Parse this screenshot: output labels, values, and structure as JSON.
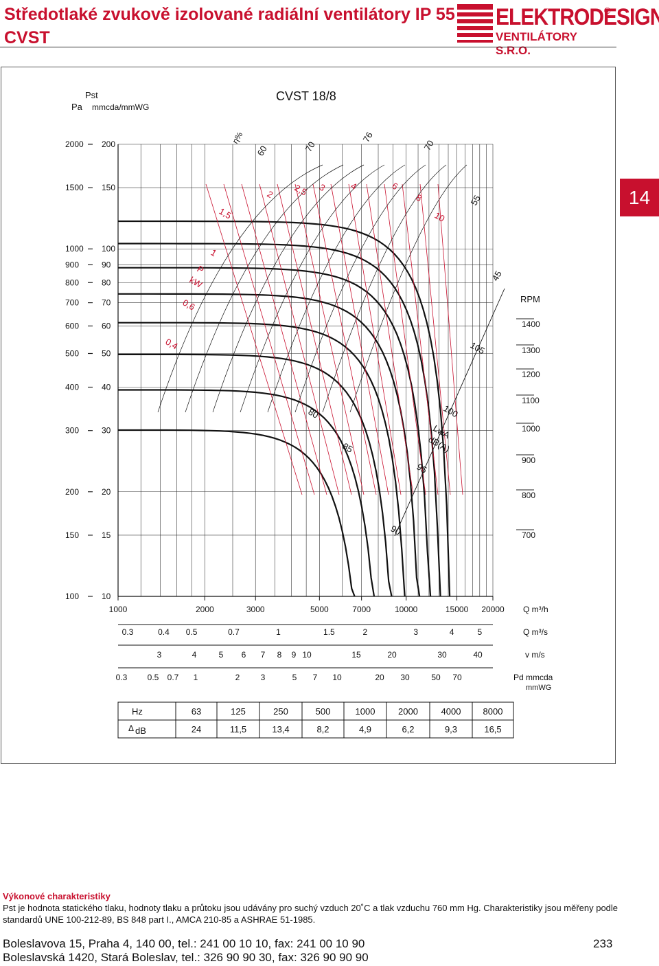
{
  "header": {
    "title_line1": "Středotlaké zvukově izolované radiální ventilátory IP 55",
    "title_line2": "CVST"
  },
  "logo": {
    "name": "ELEKTRODESIGN",
    "sub": "VENTILÁTORY S.R.O.",
    "reg": "®"
  },
  "side_tab": "14",
  "chart_data": {
    "type": "line",
    "title": "CVST 18/8",
    "y_axis_header": {
      "pst": "Pst",
      "pa": "Pa",
      "units": "mmcda/mmWG"
    },
    "x_scale": "log",
    "y_scale": "log",
    "xlabel": "Q m³/h",
    "ylabel": "Pa",
    "xlim": [
      1000,
      20000
    ],
    "ylim": [
      100,
      2000
    ],
    "pa_ticks": [
      "2000",
      "1500",
      "1000",
      "900",
      "800",
      "700",
      "600",
      "500",
      "400",
      "300",
      "200",
      "150",
      "100"
    ],
    "mm_ticks": [
      "200",
      "150",
      "100",
      "90",
      "80",
      "70",
      "60",
      "50",
      "40",
      "30",
      "20",
      "15",
      "10"
    ],
    "tick_values": [
      2000,
      1500,
      1000,
      900,
      800,
      700,
      600,
      500,
      400,
      300,
      200,
      150,
      100
    ],
    "rpm_label": "RPM",
    "rpm": [
      {
        "label": "1400",
        "value": 1400
      },
      {
        "label": "1300",
        "value": 1300
      },
      {
        "label": "1200",
        "value": 1200
      },
      {
        "label": "1100",
        "value": 1100
      },
      {
        "label": "1000",
        "value": 1000
      },
      {
        "label": "900",
        "value": 900
      },
      {
        "label": "800",
        "value": 800
      },
      {
        "label": "700",
        "value": 700
      }
    ],
    "rpm_y": [
      472,
      510,
      545,
      583,
      624,
      670,
      721,
      779
    ],
    "efficiency_symbol": "η%",
    "efficiency_labels": [
      "60",
      "70",
      "76",
      "70",
      "55",
      "45"
    ],
    "power_symbol": "P",
    "power_unit": "kW",
    "power_labels": [
      "0,4",
      "0,6",
      "1",
      "1,5",
      "2",
      "2,5",
      "3",
      "4",
      "6",
      "8",
      "10"
    ],
    "noise_symbol": "LwA",
    "noise_unit": "dB(A)",
    "noise_labels": [
      "80",
      "85",
      "90",
      "95",
      "100",
      "105"
    ],
    "x_axis_qh": {
      "labels": [
        "1000",
        "2000",
        "3000",
        "5000",
        "7000",
        "10000",
        "15000",
        "20000"
      ],
      "values": [
        1000,
        2000,
        3000,
        5000,
        7000,
        10000,
        15000,
        20000
      ],
      "unit_label": "Q m³/h"
    },
    "x_axis_qs": {
      "labels": [
        "0.3",
        "0.4",
        "0.5",
        "0.7",
        "1",
        "1.5",
        "2",
        "3",
        "4",
        "5"
      ],
      "values": [
        0.3,
        0.4,
        0.5,
        0.7,
        1,
        1.5,
        2,
        3,
        4,
        5
      ],
      "unit_label": "Q m³/s"
    },
    "x_axis_v": {
      "labels": [
        "3",
        "4",
        "5",
        "6",
        "7",
        "8",
        "9",
        "10",
        "15",
        "20",
        "30",
        "40"
      ],
      "unit_label": "v m/s"
    },
    "x_axis_pd": {
      "labels": [
        "0.3",
        "0.5",
        "0.7",
        "1",
        "2",
        "3",
        "5",
        "7",
        "10",
        "20",
        "30",
        "50",
        "70"
      ],
      "unit_label_1": "Pd mmcda",
      "unit_label_2": "mmWG"
    }
  },
  "attenuation_table": {
    "hz_label": "Hz",
    "db_label": "dB",
    "delta": "Δ",
    "frequencies": [
      "63",
      "125",
      "250",
      "500",
      "1000",
      "2000",
      "4000",
      "8000"
    ],
    "values": [
      "24",
      "11,5",
      "13,4",
      "8,2",
      "4,9",
      "6,2",
      "9,3",
      "16,5"
    ]
  },
  "section": {
    "title": "Výkonové charakteristiky",
    "text": "Pst je hodnota statického tlaku, hodnoty tlaku a průtoku jsou udávány pro suchý vzduch 20˚C a tlak vzduchu 760 mm Hg. Charakteristiky jsou měřeny podle standardů UNE 100-212-89, BS 848 part I., AMCA 210-85 a ASHRAE 51-1985."
  },
  "footer": {
    "address1": "Boleslavova 15, Praha 4, 140 00, tel.: 241 00 10 10, fax: 241 00 10 90",
    "address2": "Boleslavská 1420, Stará Boleslav, tel.: 326 90 90 30, fax: 326 90 90 90",
    "page": "233"
  }
}
